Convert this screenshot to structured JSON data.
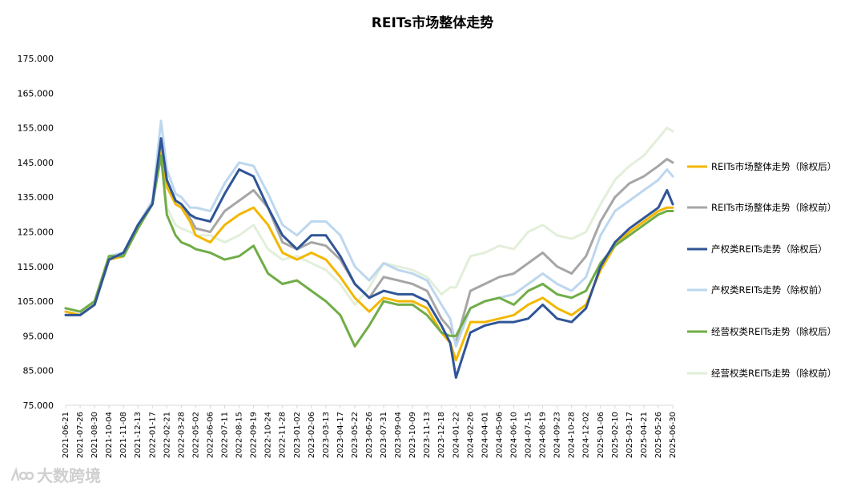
{
  "watermark": {
    "logo_icon": "dashuju-logo-icon",
    "text": "大数跨境"
  },
  "chart_data": {
    "type": "line",
    "title": "REITs市场整体走势",
    "xlabel": "",
    "ylabel": "",
    "ylim": [
      75,
      175
    ],
    "yticks": [
      "75.000",
      "85.000",
      "95.000",
      "105.000",
      "115.000",
      "125.000",
      "135.000",
      "145.000",
      "155.000",
      "165.000",
      "175.000"
    ],
    "grid": false,
    "legend_position": "right",
    "x_tick_labels": [
      "2021-06-21",
      "2021-07-26",
      "2021-08-30",
      "2021-10-04",
      "2021-11-08",
      "2021-12-13",
      "2022-01-17",
      "2022-02-21",
      "2022-03-28",
      "2022-05-02",
      "2022-06-06",
      "2022-07-11",
      "2022-08-15",
      "2022-09-19",
      "2022-10-24",
      "2022-11-28",
      "2023-01-02",
      "2023-02-06",
      "2023-03-13",
      "2023-04-17",
      "2023-05-22",
      "2023-06-26",
      "2023-07-31",
      "2023-09-04",
      "2023-10-09",
      "2023-11-13",
      "2023-12-18",
      "2024-01-22",
      "2024-02-26",
      "2024-04-01",
      "2024-05-06",
      "2024-06-10",
      "2024-07-15",
      "2024-08-19",
      "2024-09-23",
      "2024-10-28",
      "2024-12-02",
      "2025-01-06",
      "2025-02-10",
      "2025-03-17",
      "2025-04-21",
      "2025-05-26",
      "2025-06-30"
    ],
    "x": [
      "2021-06-21",
      "2021-07-26",
      "2021-08-30",
      "2021-10-04",
      "2021-11-08",
      "2021-12-13",
      "2022-01-17",
      "2022-02-07",
      "2022-02-21",
      "2022-03-14",
      "2022-03-28",
      "2022-04-18",
      "2022-05-02",
      "2022-06-06",
      "2022-07-11",
      "2022-08-15",
      "2022-09-19",
      "2022-10-24",
      "2022-11-28",
      "2023-01-02",
      "2023-02-06",
      "2023-03-13",
      "2023-04-17",
      "2023-05-22",
      "2023-06-26",
      "2023-07-31",
      "2023-09-04",
      "2023-10-09",
      "2023-11-13",
      "2023-12-18",
      "2024-01-08",
      "2024-01-22",
      "2024-02-26",
      "2024-04-01",
      "2024-05-06",
      "2024-06-10",
      "2024-07-15",
      "2024-08-19",
      "2024-09-23",
      "2024-10-28",
      "2024-12-02",
      "2025-01-06",
      "2025-02-10",
      "2025-03-17",
      "2025-04-21",
      "2025-05-26",
      "2025-06-16",
      "2025-06-30"
    ],
    "series": [
      {
        "name": "REITs市场整体走势（除权后）",
        "color": "#f2b700",
        "width": 3,
        "values": [
          102,
          101,
          104,
          117,
          118,
          126,
          133,
          148,
          138,
          133,
          132,
          128,
          124,
          122,
          127,
          130,
          132,
          127,
          119,
          117,
          119,
          117,
          112,
          106,
          102,
          106,
          105,
          105,
          103,
          96,
          93,
          88,
          99,
          99,
          100,
          101,
          104,
          106,
          103,
          101,
          104,
          114,
          121,
          125,
          128,
          131,
          132,
          132
        ]
      },
      {
        "name": "REITs市场整体走势（除权前）",
        "color": "#a6a6a6",
        "width": 3,
        "values": [
          102,
          101,
          104,
          117,
          118,
          126,
          133,
          150,
          140,
          134,
          133,
          129,
          126,
          125,
          131,
          134,
          137,
          132,
          122,
          120,
          122,
          121,
          117,
          110,
          106,
          112,
          111,
          110,
          108,
          100,
          97,
          93,
          108,
          110,
          112,
          113,
          116,
          119,
          115,
          113,
          118,
          128,
          135,
          139,
          141,
          144,
          146,
          145
        ]
      },
      {
        "name": "产权类REITs走势（除权后）",
        "color": "#2f5597",
        "width": 3,
        "values": [
          101,
          101,
          104,
          117,
          119,
          127,
          133,
          152,
          140,
          134,
          133,
          130,
          129,
          128,
          136,
          143,
          141,
          132,
          124,
          120,
          124,
          124,
          118,
          110,
          106,
          108,
          107,
          107,
          105,
          98,
          93,
          83,
          96,
          98,
          99,
          99,
          100,
          104,
          100,
          99,
          103,
          115,
          122,
          126,
          129,
          132,
          137,
          133
        ]
      },
      {
        "name": "产权类REITs走势（除权前）",
        "color": "#bdd7ee",
        "width": 3,
        "values": [
          101,
          101,
          104,
          118,
          119,
          127,
          134,
          157,
          143,
          136,
          135,
          132,
          132,
          131,
          139,
          145,
          144,
          136,
          127,
          124,
          128,
          128,
          124,
          115,
          111,
          116,
          114,
          113,
          111,
          104,
          100,
          92,
          103,
          105,
          106,
          107,
          110,
          113,
          110,
          108,
          112,
          124,
          131,
          134,
          137,
          140,
          143,
          141
        ]
      },
      {
        "name": "经营权类REITs走势（除权后）",
        "color": "#70ad47",
        "width": 3,
        "values": [
          103,
          102,
          105,
          118,
          118,
          126,
          133,
          147,
          130,
          124,
          122,
          121,
          120,
          119,
          117,
          118,
          121,
          113,
          110,
          111,
          108,
          105,
          101,
          92,
          98,
          105,
          104,
          104,
          101,
          96,
          95,
          95,
          103,
          105,
          106,
          104,
          108,
          110,
          107,
          106,
          108,
          116,
          121,
          124,
          127,
          130,
          131,
          131
        ]
      },
      {
        "name": "经营权类REITs走势（除权前）",
        "color": "#e2efda",
        "width": 3,
        "values": [
          103,
          102,
          105,
          118,
          119,
          127,
          134,
          148,
          132,
          127,
          126,
          125,
          124,
          124,
          122,
          124,
          127,
          120,
          117,
          118,
          116,
          114,
          110,
          104,
          109,
          116,
          115,
          114,
          112,
          107,
          109,
          109,
          118,
          119,
          121,
          120,
          125,
          127,
          124,
          123,
          125,
          133,
          140,
          144,
          147,
          152,
          155,
          154
        ]
      }
    ]
  }
}
